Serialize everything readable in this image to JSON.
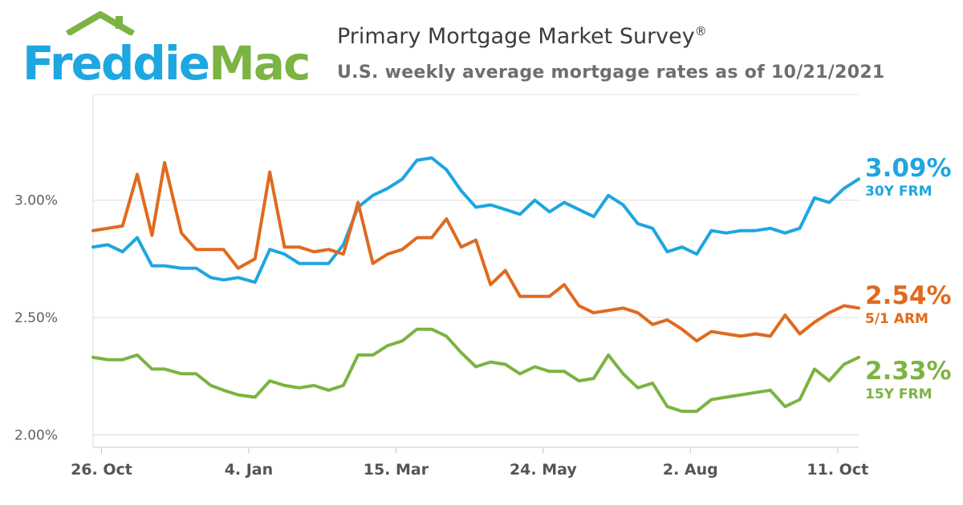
{
  "logo": {
    "text_part1": "Freddie",
    "text_part2": "Mac",
    "color_blue": "#1ea6e0",
    "color_green": "#7cb342"
  },
  "header": {
    "title": "Primary Mortgage Market Survey",
    "title_mark": "®",
    "subtitle": "U.S. weekly average mortgage rates as of 10/21/2021"
  },
  "chart_data": {
    "type": "line",
    "title": "Primary Mortgage Market Survey",
    "subtitle": "U.S. weekly average mortgage rates as of 10/21/2021",
    "xlabel": "",
    "ylabel": "",
    "x": [
      "2020-10-22",
      "2020-10-29",
      "2020-11-05",
      "2020-11-12",
      "2020-11-19",
      "2020-11-25",
      "2020-12-03",
      "2020-12-10",
      "2020-12-17",
      "2020-12-23",
      "2020-12-30",
      "2021-01-07",
      "2021-01-14",
      "2021-01-21",
      "2021-01-28",
      "2021-02-04",
      "2021-02-11",
      "2021-02-18",
      "2021-02-25",
      "2021-03-04",
      "2021-03-11",
      "2021-03-18",
      "2021-03-25",
      "2021-04-01",
      "2021-04-08",
      "2021-04-15",
      "2021-04-22",
      "2021-04-29",
      "2021-05-06",
      "2021-05-13",
      "2021-05-20",
      "2021-05-27",
      "2021-06-03",
      "2021-06-10",
      "2021-06-17",
      "2021-06-24",
      "2021-07-01",
      "2021-07-08",
      "2021-07-15",
      "2021-07-22",
      "2021-07-29",
      "2021-08-05",
      "2021-08-12",
      "2021-08-19",
      "2021-08-26",
      "2021-09-02",
      "2021-09-09",
      "2021-09-16",
      "2021-09-23",
      "2021-09-30",
      "2021-10-07",
      "2021-10-14",
      "2021-10-21"
    ],
    "series": [
      {
        "name": "30Y FRM",
        "color": "#1ea6e0",
        "latest": "3.09%",
        "values": [
          2.8,
          2.81,
          2.78,
          2.84,
          2.72,
          2.72,
          2.71,
          2.71,
          2.67,
          2.66,
          2.67,
          2.65,
          2.79,
          2.77,
          2.73,
          2.73,
          2.73,
          2.81,
          2.97,
          3.02,
          3.05,
          3.09,
          3.17,
          3.18,
          3.13,
          3.04,
          2.97,
          2.98,
          2.96,
          2.94,
          3.0,
          2.95,
          2.99,
          2.96,
          2.93,
          3.02,
          2.98,
          2.9,
          2.88,
          2.78,
          2.8,
          2.77,
          2.87,
          2.86,
          2.87,
          2.87,
          2.88,
          2.86,
          2.88,
          3.01,
          2.99,
          3.05,
          3.09
        ]
      },
      {
        "name": "5/1 ARM",
        "color": "#e06a1f",
        "latest": "2.54%",
        "values": [
          2.87,
          2.88,
          2.89,
          3.11,
          2.85,
          3.16,
          2.86,
          2.79,
          2.79,
          2.79,
          2.71,
          2.75,
          3.12,
          2.8,
          2.8,
          2.78,
          2.79,
          2.77,
          2.99,
          2.73,
          2.77,
          2.79,
          2.84,
          2.84,
          2.92,
          2.8,
          2.83,
          2.64,
          2.7,
          2.59,
          2.59,
          2.59,
          2.64,
          2.55,
          2.52,
          2.53,
          2.54,
          2.52,
          2.47,
          2.49,
          2.45,
          2.4,
          2.44,
          2.43,
          2.42,
          2.43,
          2.42,
          2.51,
          2.43,
          2.48,
          2.52,
          2.55,
          2.54
        ]
      },
      {
        "name": "15Y FRM",
        "color": "#7cb342",
        "latest": "2.33%",
        "values": [
          2.33,
          2.32,
          2.32,
          2.34,
          2.28,
          2.28,
          2.26,
          2.26,
          2.21,
          2.19,
          2.17,
          2.16,
          2.23,
          2.21,
          2.2,
          2.21,
          2.19,
          2.21,
          2.34,
          2.34,
          2.38,
          2.4,
          2.45,
          2.45,
          2.42,
          2.35,
          2.29,
          2.31,
          2.3,
          2.26,
          2.29,
          2.27,
          2.27,
          2.23,
          2.24,
          2.34,
          2.26,
          2.2,
          2.22,
          2.12,
          2.1,
          2.1,
          2.15,
          2.16,
          2.17,
          2.18,
          2.19,
          2.12,
          2.15,
          2.28,
          2.23,
          2.3,
          2.33
        ]
      }
    ],
    "ylim": [
      1.95,
      3.45
    ],
    "yticks": [
      {
        "value": 2.0,
        "label": "2.00%"
      },
      {
        "value": 2.5,
        "label": "2.50%"
      },
      {
        "value": 3.0,
        "label": "3.00%"
      }
    ],
    "xticks": [
      {
        "date": "2020-10-26",
        "label": "26. Oct"
      },
      {
        "date": "2021-01-04",
        "label": "4. Jan"
      },
      {
        "date": "2021-03-15",
        "label": "15. Mar"
      },
      {
        "date": "2021-05-24",
        "label": "24. May"
      },
      {
        "date": "2021-08-02",
        "label": "2. Aug"
      },
      {
        "date": "2021-10-11",
        "label": "11. Oct"
      }
    ],
    "grid": true,
    "legend": "right"
  }
}
